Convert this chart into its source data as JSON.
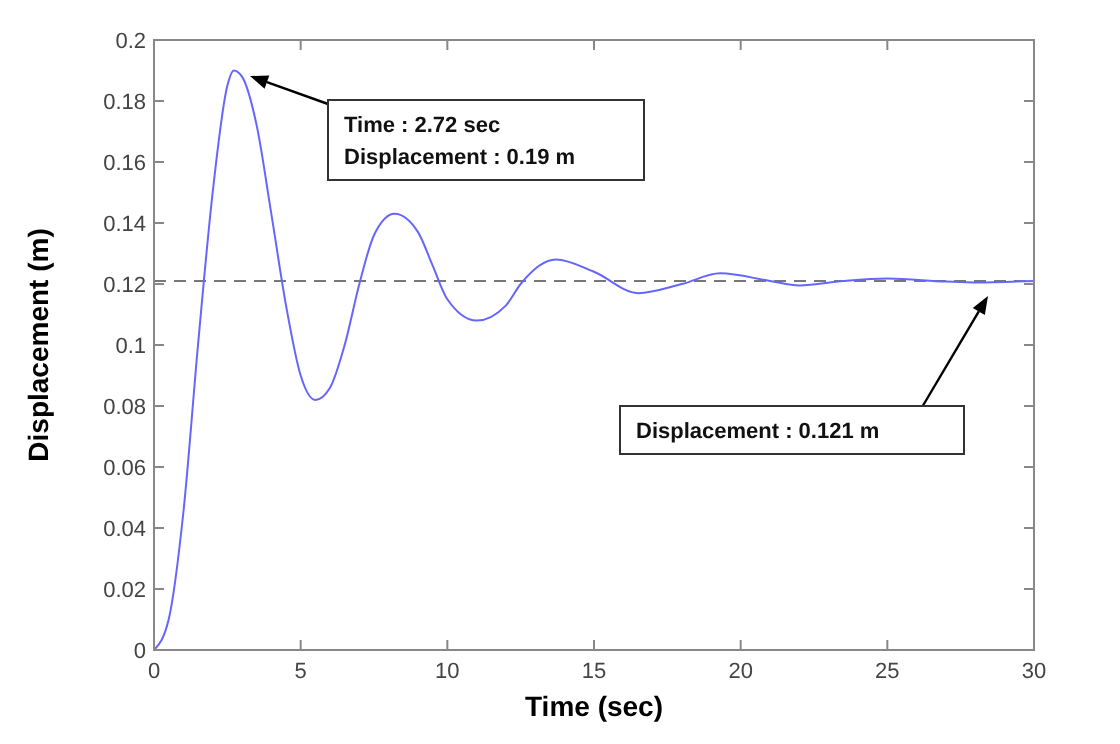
{
  "chart_data": {
    "type": "line",
    "xlabel": "Time (sec)",
    "ylabel": "Displacement (m)",
    "xlim": [
      0,
      30
    ],
    "ylim": [
      0,
      0.2
    ],
    "xticks": [
      0,
      5,
      10,
      15,
      20,
      25,
      30
    ],
    "yticks": [
      0,
      0.02,
      0.04,
      0.06,
      0.08,
      0.1,
      0.12,
      0.14,
      0.16,
      0.18,
      0.2
    ],
    "grid": false,
    "marker": "none",
    "line_style": "solid",
    "x": [
      0,
      0.5,
      1,
      1.5,
      2,
      2.5,
      2.72,
      3,
      3.5,
      4,
      4.5,
      5,
      5.5,
      6,
      6.5,
      7,
      7.5,
      8.2,
      9,
      9.5,
      10,
      11,
      12,
      12.5,
      13.7,
      15,
      16.5,
      18,
      19.3,
      21,
      22,
      23.5,
      25,
      27,
      28,
      30
    ],
    "series": [
      {
        "color": "#6666ff",
        "values": [
          0,
          0.01,
          0.045,
          0.1,
          0.15,
          0.185,
          0.19,
          0.188,
          0.172,
          0.143,
          0.113,
          0.09,
          0.082,
          0.086,
          0.1,
          0.12,
          0.136,
          0.143,
          0.137,
          0.126,
          0.115,
          0.108,
          0.113,
          0.12,
          0.128,
          0.124,
          0.117,
          0.12,
          0.1235,
          0.121,
          0.1195,
          0.121,
          0.1218,
          0.1208,
          0.1205,
          0.121
        ]
      }
    ],
    "ref_lines": [
      {
        "axis": "y",
        "value": 0.121,
        "color": "#777777",
        "line_style": "dashed"
      }
    ],
    "annotations": [
      "Time : 2.72 sec\nDisplacement : 0.19 m",
      "Displacement : 0.121 m"
    ]
  }
}
